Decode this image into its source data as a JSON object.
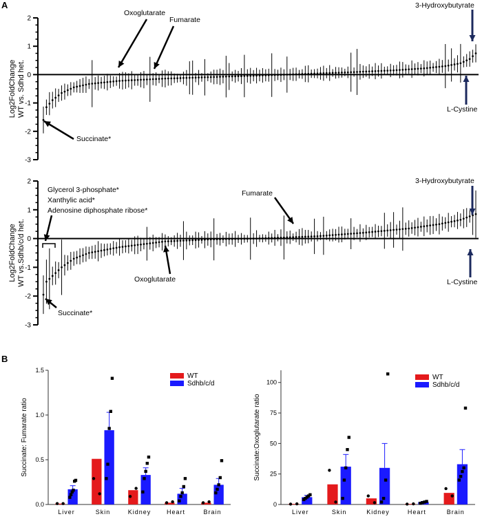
{
  "panels": {
    "a_letter": "A",
    "b_letter": "B"
  },
  "chart_data": [
    {
      "id": "A1",
      "type": "scatter",
      "ylabel_line1": "Log2FoldChange",
      "ylabel_line2": "WT vs. Sdhd het.",
      "ylim": [
        -3,
        2
      ],
      "yticks": [
        2,
        1,
        0,
        -1,
        -2,
        -3
      ],
      "n_points": 143,
      "value_profile": [
        [
          0,
          -1.6
        ],
        [
          1,
          -1.15
        ],
        [
          3,
          -0.9
        ],
        [
          6,
          -0.65
        ],
        [
          10,
          -0.45
        ],
        [
          15,
          -0.33
        ],
        [
          25,
          -0.22
        ],
        [
          40,
          -0.14
        ],
        [
          60,
          -0.07
        ],
        [
          80,
          0.0
        ],
        [
          100,
          0.08
        ],
        [
          115,
          0.15
        ],
        [
          125,
          0.22
        ],
        [
          132,
          0.3
        ],
        [
          137,
          0.4
        ],
        [
          140,
          0.55
        ],
        [
          142,
          0.75
        ]
      ],
      "annotations": [
        {
          "label": "Oxoglutarate",
          "point_index": 33
        },
        {
          "label": "Fumarate",
          "point_index": 44
        },
        {
          "label": "Succinate*",
          "point_index": 0
        },
        {
          "label": "3-Hydroxybutyrate",
          "point_index": 142
        },
        {
          "label": "L-Cystine",
          "point_index": 142
        }
      ]
    },
    {
      "id": "A2",
      "type": "scatter",
      "ylabel_line1": "Log2FoldChange",
      "ylabel_line2": "WT vs.Sdhb/c/d het.",
      "ylim": [
        -3,
        2
      ],
      "yticks": [
        2,
        1,
        0,
        -1,
        -2,
        -3
      ],
      "n_points": 143,
      "value_profile": [
        [
          0,
          -1.95
        ],
        [
          1,
          -1.5
        ],
        [
          3,
          -1.3
        ],
        [
          6,
          -1.0
        ],
        [
          10,
          -0.7
        ],
        [
          15,
          -0.5
        ],
        [
          25,
          -0.3
        ],
        [
          40,
          -0.1
        ],
        [
          55,
          -0.03
        ],
        [
          70,
          0.0
        ],
        [
          90,
          0.08
        ],
        [
          105,
          0.2
        ],
        [
          120,
          0.35
        ],
        [
          130,
          0.5
        ],
        [
          137,
          0.65
        ],
        [
          142,
          0.85
        ]
      ],
      "annotations": [
        {
          "label": "Glycerol 3-phosphate*",
          "point_index": 2
        },
        {
          "label": "Xanthylic acid*",
          "point_index": 2
        },
        {
          "label": "Adenosine diphosphate ribose*",
          "point_index": 2
        },
        {
          "label": "Fumarate",
          "point_index": 62
        },
        {
          "label": "Oxoglutarate",
          "point_index": 31
        },
        {
          "label": "Succinate*",
          "point_index": 0
        },
        {
          "label": "3-Hydroxybutyrate",
          "point_index": 142
        },
        {
          "label": "L-Cystine",
          "point_index": 142
        }
      ]
    },
    {
      "id": "B1",
      "type": "bar",
      "ylabel": "Succinate: Fumarate ratio",
      "ylim": [
        0,
        1.5
      ],
      "yticks": [
        0.0,
        0.5,
        1.0,
        1.5
      ],
      "ytick_labels": [
        "0.0",
        "0.5",
        "1.0",
        "1.5"
      ],
      "categories": [
        "Liver",
        "Skin",
        "Kidney",
        "Heart",
        "Brain"
      ],
      "series": [
        {
          "name": "WT",
          "color": "#e41a1c",
          "values": [
            0.01,
            0.51,
            0.16,
            0.02,
            0.02
          ],
          "sem": [
            0.0,
            0.0,
            0.0,
            0.0,
            0.0
          ],
          "points": [
            [
              0.01,
              0.01
            ],
            [
              0.29,
              0.12
            ],
            [
              0.09,
              0.18
            ],
            [
              0.02,
              0.03
            ],
            [
              0.02,
              0.03
            ]
          ]
        },
        {
          "name": "Sdhb/c/d",
          "color": "#1a1aff",
          "values": [
            0.17,
            0.83,
            0.33,
            0.12,
            0.22
          ],
          "sem": [
            0.04,
            0.2,
            0.08,
            0.06,
            0.07
          ],
          "points": [
            [
              0.08,
              0.11,
              0.14,
              0.16,
              0.26,
              0.27
            ],
            [
              0.29,
              0.45,
              0.85,
              1.04,
              1.41
            ],
            [
              0.14,
              0.29,
              0.37,
              0.46,
              0.53
            ],
            [
              0.04,
              0.09,
              0.13,
              0.2,
              0.29
            ],
            [
              0.13,
              0.17,
              0.22,
              0.3,
              0.49
            ]
          ]
        }
      ]
    },
    {
      "id": "B2",
      "type": "bar",
      "ylabel": "Succinate:Oxoglutarate ratio",
      "ylim": [
        0,
        110
      ],
      "yticks": [
        0,
        25,
        50,
        75,
        100
      ],
      "ytick_labels": [
        "0",
        "25",
        "50",
        "75",
        "100"
      ],
      "categories": [
        "Liver",
        "Skin",
        "Kidney",
        "Heart",
        "Brain"
      ],
      "series": [
        {
          "name": "WT",
          "color": "#e41a1c",
          "values": [
            0.5,
            16.5,
            5.0,
            0.5,
            9.5
          ],
          "sem": [
            0,
            0,
            0,
            0,
            0
          ],
          "points": [
            [
              0.3,
              0.5
            ],
            [
              28,
              2.0
            ],
            [
              7,
              1.5
            ],
            [
              0.3,
              0.5
            ],
            [
              13,
              7
            ]
          ]
        },
        {
          "name": "Sdhb/c/d",
          "color": "#1a1aff",
          "values": [
            6.0,
            31.0,
            30.0,
            2.0,
            33.0
          ],
          "sem": [
            1.5,
            10.0,
            20.0,
            0.5,
            12.0
          ],
          "points": [
            [
              4,
              5,
              6,
              7,
              8
            ],
            [
              5,
              20,
              30,
              45,
              55
            ],
            [
              2,
              5,
              20,
              107
            ],
            [
              1,
              1.5,
              2,
              2.5
            ],
            [
              20,
              23,
              27,
              30,
              79
            ]
          ]
        }
      ]
    }
  ]
}
